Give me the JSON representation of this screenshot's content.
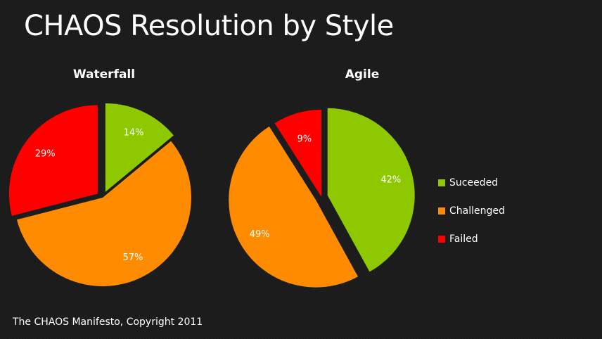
{
  "title": "CHAOS Resolution by Style",
  "footer": "The CHAOS Manifesto, Copyright 2011",
  "chart_data": [
    {
      "type": "pie",
      "title": "Waterfall",
      "categories": [
        "Suceeded",
        "Challenged",
        "Failed"
      ],
      "values": [
        14,
        57,
        29
      ],
      "labels": [
        "14%",
        "57%",
        "29%"
      ],
      "colors": [
        "#8dc800",
        "#ff8c00",
        "#ff0000"
      ],
      "exploded": [
        true,
        false,
        true
      ]
    },
    {
      "type": "pie",
      "title": "Agile",
      "categories": [
        "Suceeded",
        "Challenged",
        "Failed"
      ],
      "values": [
        42,
        49,
        9
      ],
      "labels": [
        "42%",
        "49%",
        "9%"
      ],
      "colors": [
        "#8dc800",
        "#ff8c00",
        "#ff0000"
      ],
      "exploded": [
        true,
        true,
        false
      ]
    }
  ],
  "legend": {
    "placement": "right",
    "items": [
      {
        "label": "Suceeded",
        "color": "#8dc800"
      },
      {
        "label": "Challenged",
        "color": "#ff8c00"
      },
      {
        "label": "Failed",
        "color": "#ff0000"
      }
    ]
  }
}
